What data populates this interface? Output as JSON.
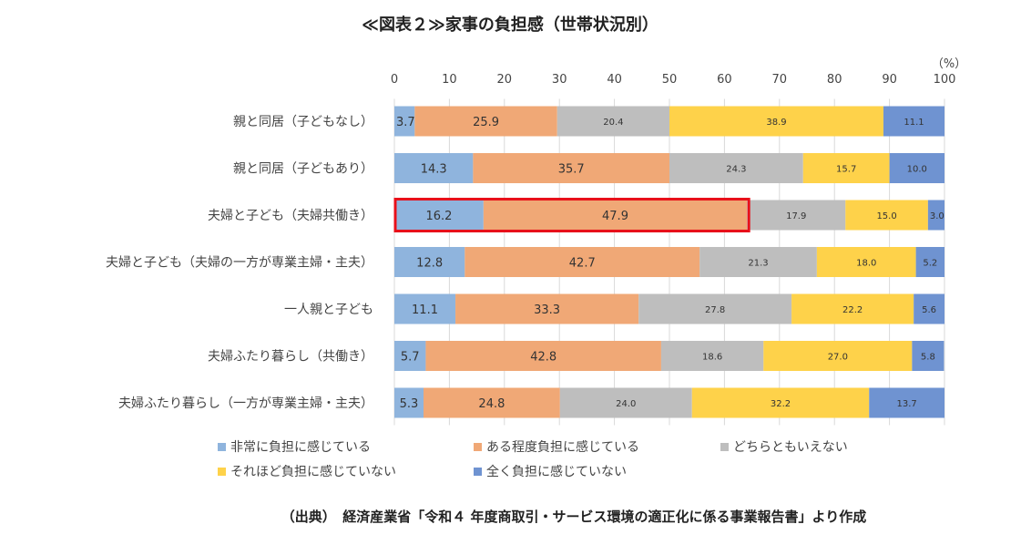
{
  "chart_data": {
    "type": "bar",
    "orientation": "horizontal-stacked-100",
    "title": "≪図表２≫家事の負担感（世帯状況別）",
    "unit_label": "（%）",
    "xlim": [
      0,
      100
    ],
    "xticks": [
      "0",
      "10",
      "20",
      "30",
      "40",
      "50",
      "60",
      "70",
      "80",
      "90",
      "100"
    ],
    "categories": [
      "親と同居（子どもなし）",
      "親と同居（子どもあり）",
      "夫婦と子ども（夫婦共働き）",
      "夫婦と子ども（夫婦の一方が専業主婦・主夫）",
      "一人親と子ども",
      "夫婦ふたり暮らし（共働き）",
      "夫婦ふたり暮らし（一方が専業主婦・主夫）"
    ],
    "series": [
      {
        "name": "非常に負担に感じている",
        "color": "#8fb4dd",
        "values": [
          3.7,
          14.3,
          16.2,
          12.8,
          11.1,
          5.7,
          5.3
        ],
        "labels": [
          "3.7",
          "14.3",
          "16.2",
          "12.8",
          "11.1",
          "5.7",
          "5.3"
        ]
      },
      {
        "name": "ある程度負担に感じている",
        "color": "#f0a876",
        "values": [
          25.9,
          35.7,
          47.9,
          42.7,
          33.3,
          42.8,
          24.8
        ],
        "labels": [
          "25.9",
          "35.7",
          "47.9",
          "42.7",
          "33.3",
          "42.8",
          "24.8"
        ]
      },
      {
        "name": "どちらともいえない",
        "color": "#bebebe",
        "values": [
          20.4,
          24.3,
          17.9,
          21.3,
          27.8,
          18.6,
          24.0
        ],
        "labels": [
          "20.4",
          "24.3",
          "17.9",
          "21.3",
          "27.8",
          "18.6",
          "24.0"
        ]
      },
      {
        "name": "それほど負担に感じていない",
        "color": "#fed24a",
        "values": [
          38.9,
          15.7,
          15.0,
          18.0,
          22.2,
          27.0,
          32.2
        ],
        "labels": [
          "38.9",
          "15.7",
          "15.0",
          "18.0",
          "22.2",
          "27.0",
          "32.2"
        ]
      },
      {
        "name": "全く負担に感じていない",
        "color": "#6f93d1",
        "values": [
          11.1,
          10.0,
          3.0,
          5.2,
          5.6,
          5.8,
          13.7
        ],
        "labels": [
          "11.1",
          "10.0",
          "3.0",
          "5.2",
          "5.6",
          "5.8",
          "13.7"
        ]
      }
    ],
    "highlight": {
      "category_index": 2,
      "series_indices": [
        0,
        1
      ],
      "color": "#e8101a"
    },
    "grid": true,
    "legend_position": "bottom"
  },
  "source": "（出典）　経済産業省「令和４ 年度商取引・サービス環境の適正化に係る事業報告書」より作成"
}
